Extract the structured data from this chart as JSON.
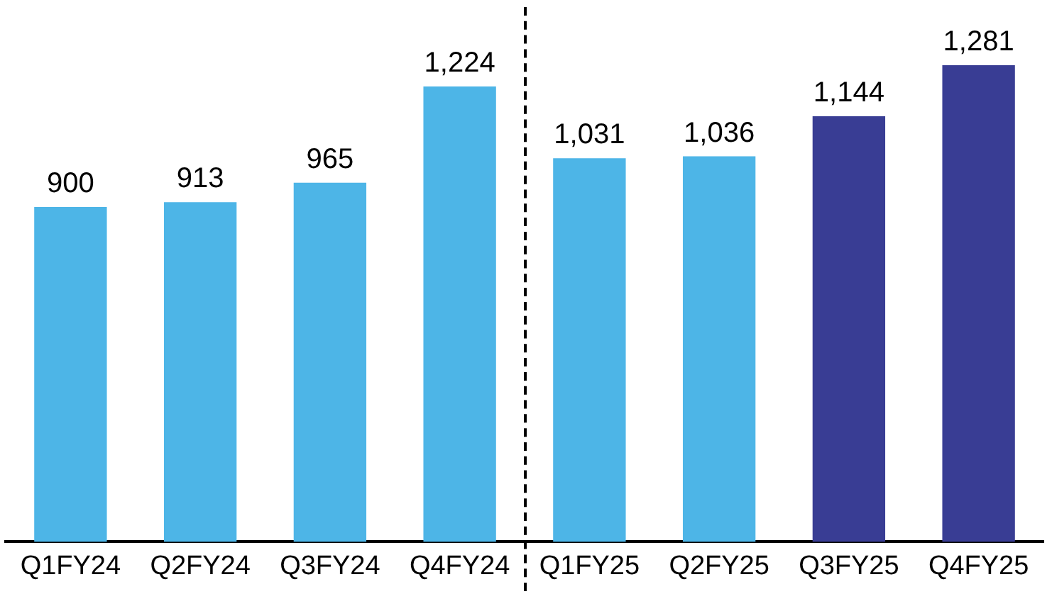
{
  "chart_data": {
    "type": "bar",
    "categories": [
      "Q1FY24",
      "Q2FY24",
      "Q3FY24",
      "Q4FY24",
      "Q1FY25",
      "Q2FY25",
      "Q3FY25",
      "Q4FY25"
    ],
    "values": [
      900,
      913,
      965,
      1224,
      1031,
      1036,
      1144,
      1281
    ],
    "value_labels": [
      "900",
      "913",
      "965",
      "1,224",
      "1,031",
      "1,036",
      "1,144",
      "1,281"
    ],
    "colors": [
      "#4db5e7",
      "#4db5e7",
      "#4db5e7",
      "#4db5e7",
      "#4db5e7",
      "#4db5e7",
      "#393d94",
      "#393d94"
    ],
    "grid": false,
    "legend": false
  }
}
